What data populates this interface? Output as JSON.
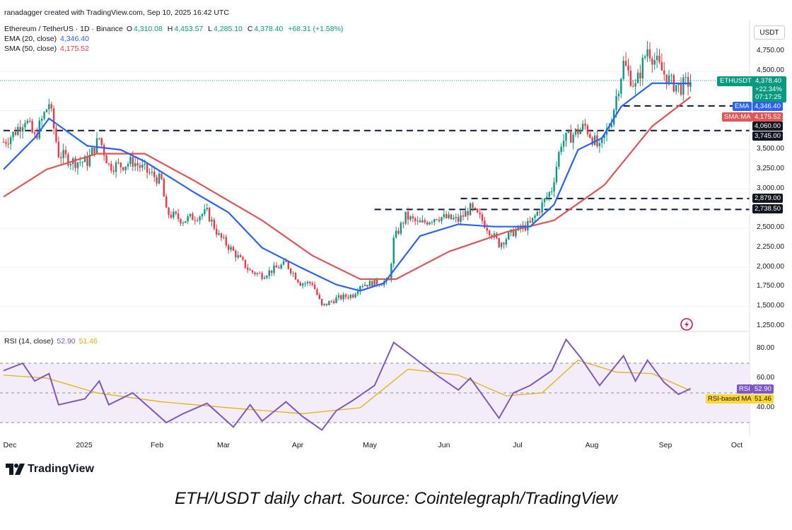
{
  "header": {
    "credit": "ranadagger created with TradingView.com, Sep 10, 2025 16:42 UTC",
    "symbol": "Ethereum / TetherUS · 1D · Binance",
    "o_label": "O",
    "o": "4,310.08",
    "h_label": "H",
    "h": "4,453.57",
    "l_label": "L",
    "l": "4,285.10",
    "c_label": "C",
    "c": "4,378.40",
    "change": "+68.31 (+1.58%)",
    "ema_name": "EMA (20, close)",
    "ema_val": "4,346.40",
    "sma_name": "SMA (50, close)",
    "sma_val": "4,175.52"
  },
  "price_axis": {
    "unit": "USDT",
    "ticks": [
      "4,750.00",
      "4,500.00",
      "3,500.00",
      "3,250.00",
      "3,000.00",
      "2,500.00",
      "2,250.00",
      "2,000.00",
      "1,750.00",
      "1,500.00",
      "1,250.00"
    ]
  },
  "badges": {
    "symbol": "ETHUSDT",
    "price": "4,378.40",
    "pct": "+22.34%",
    "countdown": "07:17:25",
    "ema_tag": "EMA",
    "ema": "4,346.40",
    "sma_tag": "SMA:MA",
    "sma": "4,175.52",
    "lvl_4060": "4,060.00",
    "lvl_3745": "3,745.00",
    "lvl_2879": "2,879.00",
    "lvl_2738": "2,738.50"
  },
  "rsi_panel": {
    "name": "RSI (14, close)",
    "rsi": "52.90",
    "rsi_ma": "51.46",
    "rsi_tag": "RSI",
    "rsi_ma_tag": "RSI-based MA",
    "ticks": [
      "80.00",
      "60.00",
      "40.00"
    ]
  },
  "time_axis": [
    "Dec",
    "2025",
    "Feb",
    "Mar",
    "Apr",
    "May",
    "Jun",
    "Jul",
    "Aug",
    "Sep",
    "Oct"
  ],
  "footer": {
    "logo_text": "TradingView",
    "caption": "ETH/USDT daily chart. Source: Cointelegraph/TradingView"
  },
  "colors": {
    "up": "#089981",
    "down": "#f23645",
    "ema": "#2962ff",
    "sma": "#e05555",
    "rsi": "#7e57c2",
    "rsi_ma": "#e0b000",
    "level": "#0a1a3f",
    "band": "#ece6f7"
  },
  "chart_data": {
    "type": "candlestick",
    "x_dates": [
      "2024-11-27",
      "2025-09-10"
    ],
    "levels": [
      4060,
      3745,
      2879,
      2738.5
    ],
    "price_ylim": [
      1250,
      4900
    ],
    "rsi_ylim": [
      20,
      90
    ],
    "rsi_bands": [
      70,
      50,
      30
    ],
    "price_path": [
      [
        "2024-11-27",
        3600
      ],
      [
        "2024-12-01",
        3700
      ],
      [
        "2024-12-06",
        3900
      ],
      [
        "2024-12-10",
        3650
      ],
      [
        "2024-12-16",
        4100
      ],
      [
        "2024-12-20",
        3450
      ],
      [
        "2024-12-26",
        3350
      ],
      [
        "2025-01-01",
        3350
      ],
      [
        "2025-01-06",
        3650
      ],
      [
        "2025-01-10",
        3300
      ],
      [
        "2025-01-15",
        3300
      ],
      [
        "2025-01-20",
        3350
      ],
      [
        "2025-01-27",
        3200
      ],
      [
        "2025-02-01",
        3100
      ],
      [
        "2025-02-03",
        2700
      ],
      [
        "2025-02-10",
        2600
      ],
      [
        "2025-02-20",
        2700
      ],
      [
        "2025-02-25",
        2400
      ],
      [
        "2025-03-03",
        2200
      ],
      [
        "2025-03-10",
        1950
      ],
      [
        "2025-03-15",
        1900
      ],
      [
        "2025-03-25",
        2050
      ],
      [
        "2025-03-31",
        1800
      ],
      [
        "2025-04-05",
        1800
      ],
      [
        "2025-04-09",
        1500
      ],
      [
        "2025-04-15",
        1600
      ],
      [
        "2025-04-22",
        1650
      ],
      [
        "2025-04-25",
        1780
      ],
      [
        "2025-05-01",
        1800
      ],
      [
        "2025-05-07",
        1820
      ],
      [
        "2025-05-09",
        2350
      ],
      [
        "2025-05-14",
        2650
      ],
      [
        "2025-05-20",
        2550
      ],
      [
        "2025-05-27",
        2650
      ],
      [
        "2025-06-05",
        2600
      ],
      [
        "2025-06-10",
        2750
      ],
      [
        "2025-06-15",
        2600
      ],
      [
        "2025-06-22",
        2300
      ],
      [
        "2025-06-28",
        2450
      ],
      [
        "2025-07-05",
        2550
      ],
      [
        "2025-07-09",
        2750
      ],
      [
        "2025-07-14",
        3000
      ],
      [
        "2025-07-18",
        3600
      ],
      [
        "2025-07-23",
        3700
      ],
      [
        "2025-07-28",
        3800
      ],
      [
        "2025-08-03",
        3500
      ],
      [
        "2025-08-08",
        3900
      ],
      [
        "2025-08-13",
        4600
      ],
      [
        "2025-08-18",
        4300
      ],
      [
        "2025-08-23",
        4800
      ],
      [
        "2025-08-28",
        4550
      ],
      [
        "2025-09-02",
        4350
      ],
      [
        "2025-09-06",
        4300
      ],
      [
        "2025-09-10",
        4378.4
      ]
    ],
    "ema20": [
      [
        "2024-11-27",
        3250
      ],
      [
        "2024-12-10",
        3650
      ],
      [
        "2024-12-16",
        3900
      ],
      [
        "2025-01-01",
        3550
      ],
      [
        "2025-01-15",
        3500
      ],
      [
        "2025-01-25",
        3350
      ],
      [
        "2025-02-15",
        2950
      ],
      [
        "2025-03-01",
        2700
      ],
      [
        "2025-03-15",
        2250
      ],
      [
        "2025-03-31",
        2000
      ],
      [
        "2025-04-15",
        1780
      ],
      [
        "2025-04-25",
        1700
      ],
      [
        "2025-05-05",
        1800
      ],
      [
        "2025-05-20",
        2400
      ],
      [
        "2025-06-05",
        2550
      ],
      [
        "2025-06-20",
        2520
      ],
      [
        "2025-07-05",
        2520
      ],
      [
        "2025-07-15",
        2800
      ],
      [
        "2025-07-25",
        3500
      ],
      [
        "2025-08-04",
        3650
      ],
      [
        "2025-08-12",
        4050
      ],
      [
        "2025-08-25",
        4350
      ],
      [
        "2025-09-10",
        4346.4
      ]
    ],
    "sma50": [
      [
        "2024-11-27",
        2900
      ],
      [
        "2024-12-15",
        3250
      ],
      [
        "2025-01-05",
        3450
      ],
      [
        "2025-01-25",
        3450
      ],
      [
        "2025-02-15",
        3100
      ],
      [
        "2025-03-15",
        2600
      ],
      [
        "2025-04-05",
        2150
      ],
      [
        "2025-04-25",
        1850
      ],
      [
        "2025-05-10",
        1850
      ],
      [
        "2025-06-01",
        2200
      ],
      [
        "2025-06-25",
        2450
      ],
      [
        "2025-07-15",
        2600
      ],
      [
        "2025-08-05",
        3050
      ],
      [
        "2025-08-25",
        3800
      ],
      [
        "2025-09-10",
        4175.52
      ]
    ],
    "rsi": [
      [
        "2024-11-27",
        65
      ],
      [
        "2024-12-05",
        70
      ],
      [
        "2024-12-10",
        58
      ],
      [
        "2024-12-16",
        63
      ],
      [
        "2024-12-20",
        42
      ],
      [
        "2024-12-31",
        46
      ],
      [
        "2025-01-06",
        58
      ],
      [
        "2025-01-10",
        42
      ],
      [
        "2025-01-20",
        50
      ],
      [
        "2025-02-03",
        30
      ],
      [
        "2025-02-10",
        36
      ],
      [
        "2025-02-20",
        43
      ],
      [
        "2025-03-03",
        27
      ],
      [
        "2025-03-10",
        42
      ],
      [
        "2025-03-15",
        31
      ],
      [
        "2025-03-25",
        44
      ],
      [
        "2025-04-01",
        34
      ],
      [
        "2025-04-09",
        25
      ],
      [
        "2025-04-15",
        38
      ],
      [
        "2025-04-22",
        45
      ],
      [
        "2025-05-01",
        55
      ],
      [
        "2025-05-09",
        84
      ],
      [
        "2025-05-14",
        78
      ],
      [
        "2025-05-27",
        62
      ],
      [
        "2025-06-05",
        52
      ],
      [
        "2025-06-10",
        60
      ],
      [
        "2025-06-22",
        33
      ],
      [
        "2025-06-28",
        50
      ],
      [
        "2025-07-05",
        55
      ],
      [
        "2025-07-14",
        65
      ],
      [
        "2025-07-20",
        86
      ],
      [
        "2025-07-26",
        74
      ],
      [
        "2025-08-03",
        55
      ],
      [
        "2025-08-13",
        75
      ],
      [
        "2025-08-18",
        58
      ],
      [
        "2025-08-23",
        72
      ],
      [
        "2025-08-30",
        57
      ],
      [
        "2025-09-05",
        49
      ],
      [
        "2025-09-10",
        52.9
      ]
    ],
    "rsi_ma": [
      [
        "2024-11-27",
        62
      ],
      [
        "2024-12-15",
        60
      ],
      [
        "2025-01-05",
        50
      ],
      [
        "2025-02-01",
        44
      ],
      [
        "2025-03-01",
        40
      ],
      [
        "2025-04-01",
        36
      ],
      [
        "2025-04-25",
        40
      ],
      [
        "2025-05-15",
        66
      ],
      [
        "2025-06-05",
        62
      ],
      [
        "2025-06-25",
        48
      ],
      [
        "2025-07-10",
        50
      ],
      [
        "2025-07-25",
        72
      ],
      [
        "2025-08-10",
        64
      ],
      [
        "2025-08-25",
        63
      ],
      [
        "2025-09-10",
        51.46
      ]
    ]
  }
}
